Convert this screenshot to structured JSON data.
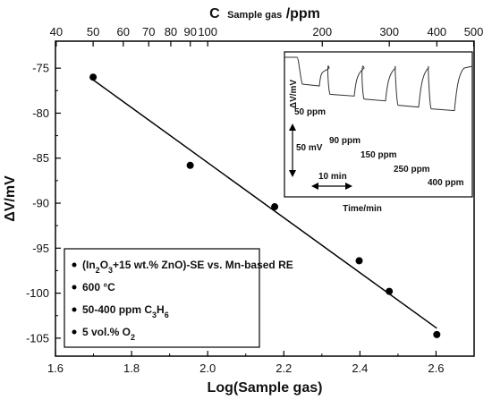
{
  "chart_data": [
    {
      "type": "scatter",
      "xlabel": "Log(Sample gas)",
      "ylabel": "ΔV/mV",
      "top_axis": {
        "label_main": "C",
        "label_sub": "Sample gas",
        "label_unit": "/ppm",
        "ticks": [
          40,
          50,
          60,
          70,
          80,
          90,
          100,
          200,
          300,
          400,
          500
        ],
        "tick_labels": [
          "40",
          "50",
          "60",
          "70",
          "80",
          "90",
          "100",
          "200",
          "300",
          "400",
          "500"
        ]
      },
      "xlim": [
        1.6,
        2.7
      ],
      "ylim": [
        -107,
        -72
      ],
      "xticks": [
        1.6,
        1.8,
        2.0,
        2.2,
        2.4,
        2.6
      ],
      "xtick_labels": [
        "1.6",
        "1.8",
        "2.0",
        "2.2",
        "2.4",
        "2.6"
      ],
      "yticks": [
        -75,
        -80,
        -85,
        -90,
        -95,
        -100,
        -105
      ],
      "ytick_labels": [
        "-75",
        "-80",
        "-85",
        "-90",
        "-95",
        "-100",
        "-105"
      ],
      "points": [
        {
          "x": 1.699,
          "y": -76.0
        },
        {
          "x": 1.954,
          "y": -85.8
        },
        {
          "x": 2.176,
          "y": -90.4
        },
        {
          "x": 2.398,
          "y": -96.4
        },
        {
          "x": 2.477,
          "y": -99.8
        },
        {
          "x": 2.602,
          "y": -104.6
        }
      ],
      "fit_line": {
        "x": [
          1.699,
          2.602
        ],
        "y": [
          -76.3,
          -103.9
        ]
      },
      "legend": {
        "placement": "bottom-left",
        "entries": [
          {
            "parts": [
              {
                "t": "(In"
              },
              {
                "t": "2",
                "sub": true
              },
              {
                "t": "O"
              },
              {
                "t": "3",
                "sub": true
              },
              {
                "t": "+15 wt.% ZnO)-SE vs. Mn-based RE"
              }
            ]
          },
          {
            "parts": [
              {
                "t": "600 °C"
              }
            ]
          },
          {
            "parts": [
              {
                "t": "50-400 ppm C"
              },
              {
                "t": "3",
                "sub": true
              },
              {
                "t": "H"
              },
              {
                "t": "6",
                "sub": true
              }
            ]
          },
          {
            "parts": [
              {
                "t": "5 vol.% O"
              },
              {
                "t": "2",
                "sub": true
              }
            ]
          }
        ]
      }
    },
    {
      "type": "line",
      "placement": "top-right inset",
      "xlabel": "Time/min",
      "ylabel": "ΔV/mV",
      "scale_bar_voltage": "50 mV",
      "scale_bar_time": "10 min",
      "concentrations": [
        "50 ppm",
        "90 ppm",
        "150 ppm",
        "250 ppm",
        "400 ppm"
      ],
      "baseline_mV": 0,
      "step_responses_mV": [
        -27.6,
        -37.4,
        -42.0,
        -48.0,
        -51.4
      ],
      "x_range_min": [
        0,
        60
      ],
      "y_range_mV": [
        -55,
        2
      ]
    }
  ]
}
